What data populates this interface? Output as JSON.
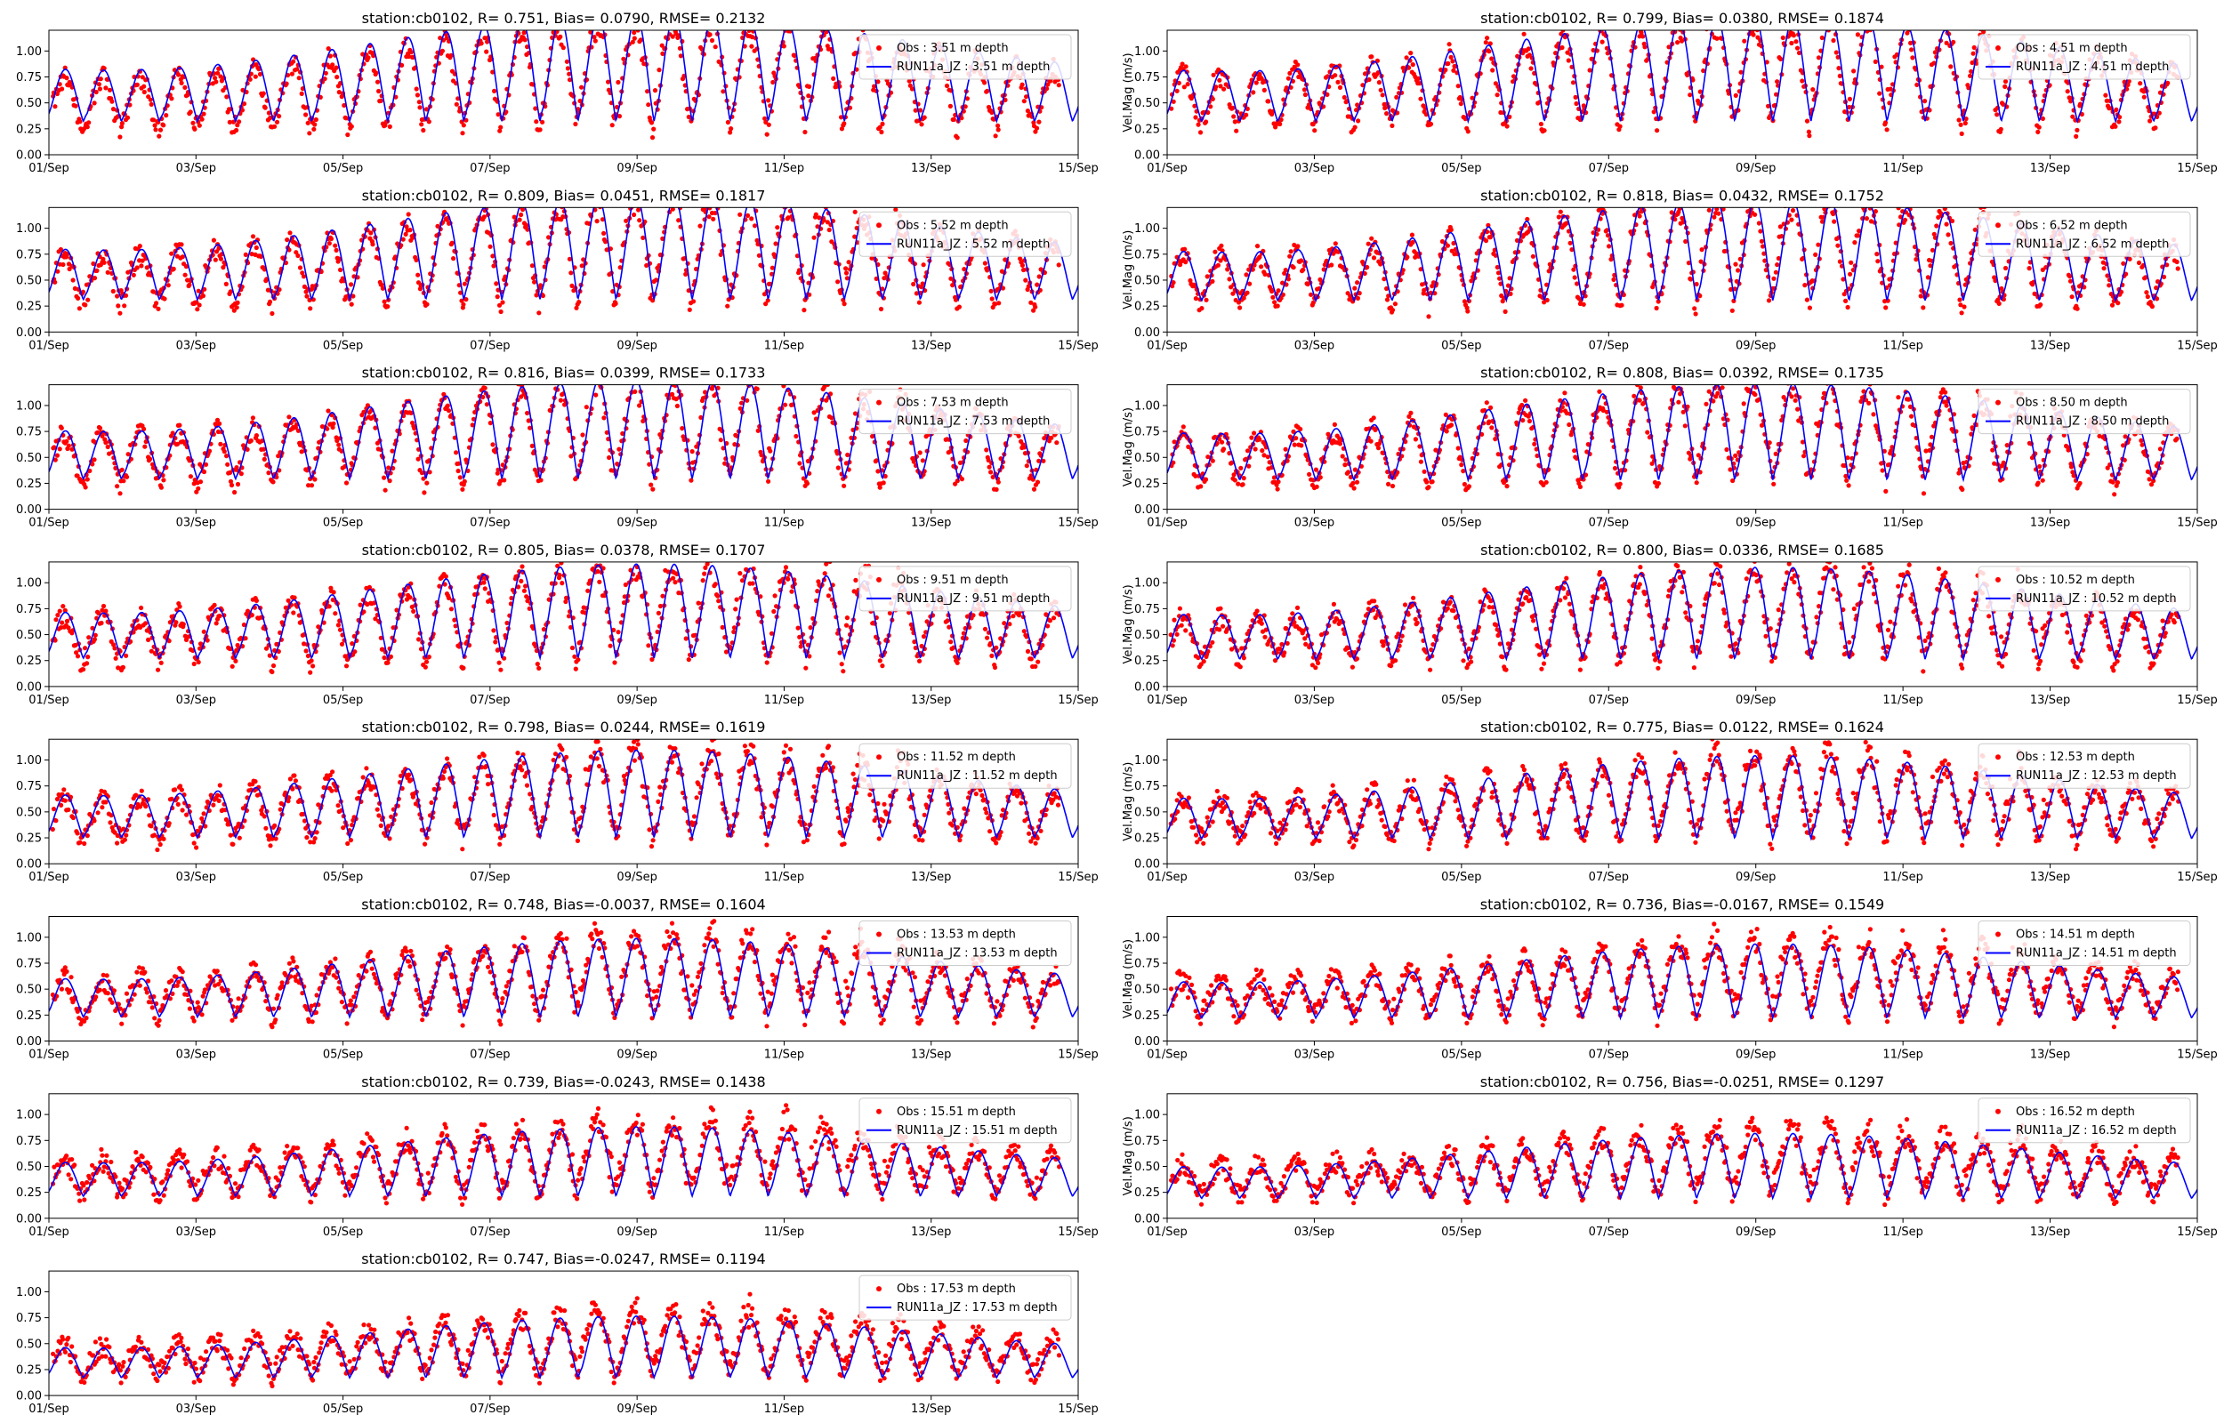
{
  "figure": {
    "colors": {
      "obs": "#ff0000",
      "model": "#0000ff",
      "axes": "#000000",
      "background": "#ffffff"
    }
  },
  "chart_data": [
    {
      "type": "line",
      "title": "station:cb0102, R= 0.751, Bias= 0.0790, RMSE= 0.2132",
      "ylabel": "",
      "xlim": [
        "01/Sep",
        "15/Sep"
      ],
      "ylim": [
        0,
        1.2
      ],
      "x_ticks": [
        "01/Sep",
        "03/Sep",
        "05/Sep",
        "07/Sep",
        "09/Sep",
        "11/Sep",
        "13/Sep",
        "15/Sep"
      ],
      "y_ticks": [
        "0.00",
        "0.25",
        "0.50",
        "0.75",
        "1.00"
      ],
      "legend_position": "top-right",
      "series": [
        {
          "name": "Obs : 3.51 m depth",
          "kind": "scatter"
        },
        {
          "name": "RUN11a_JZ : 3.51 m depth",
          "kind": "line"
        }
      ],
      "stats": {
        "R": 0.751,
        "Bias": 0.079,
        "RMSE": 0.2132
      },
      "depth_m": 3.51,
      "model_mean": 0.5,
      "amp_peak": 0.95
    },
    {
      "type": "line",
      "title": "station:cb0102, R= 0.799, Bias= 0.0380, RMSE= 0.1874",
      "ylabel": "Vel.Mag (m/s)",
      "xlim": [
        "01/Sep",
        "15/Sep"
      ],
      "ylim": [
        0,
        1.2
      ],
      "x_ticks": [
        "01/Sep",
        "03/Sep",
        "05/Sep",
        "07/Sep",
        "09/Sep",
        "11/Sep",
        "13/Sep",
        "15/Sep"
      ],
      "y_ticks": [
        "0.00",
        "0.25",
        "0.50",
        "0.75",
        "1.00"
      ],
      "legend_position": "top-right",
      "series": [
        {
          "name": "Obs : 4.51 m depth",
          "kind": "scatter"
        },
        {
          "name": "RUN11a_JZ : 4.51 m depth",
          "kind": "line"
        }
      ],
      "stats": {
        "R": 0.799,
        "Bias": 0.038,
        "RMSE": 0.1874
      },
      "depth_m": 4.51,
      "model_mean": 0.5,
      "amp_peak": 0.93
    },
    {
      "type": "line",
      "title": "station:cb0102, R= 0.809, Bias= 0.0451, RMSE= 0.1817",
      "ylabel": "",
      "xlim": [
        "01/Sep",
        "15/Sep"
      ],
      "ylim": [
        0,
        1.2
      ],
      "x_ticks": [
        "01/Sep",
        "03/Sep",
        "05/Sep",
        "07/Sep",
        "09/Sep",
        "11/Sep",
        "13/Sep",
        "15/Sep"
      ],
      "y_ticks": [
        "0.00",
        "0.25",
        "0.50",
        "0.75",
        "1.00"
      ],
      "legend_position": "top-right",
      "series": [
        {
          "name": "Obs : 5.52 m depth",
          "kind": "scatter"
        },
        {
          "name": "RUN11a_JZ : 5.52 m depth",
          "kind": "line"
        }
      ],
      "stats": {
        "R": 0.809,
        "Bias": 0.0451,
        "RMSE": 0.1817
      },
      "depth_m": 5.52,
      "model_mean": 0.49,
      "amp_peak": 0.92
    },
    {
      "type": "line",
      "title": "station:cb0102, R= 0.818, Bias= 0.0432, RMSE= 0.1752",
      "ylabel": "Vel.Mag (m/s)",
      "xlim": [
        "01/Sep",
        "15/Sep"
      ],
      "ylim": [
        0,
        1.2
      ],
      "x_ticks": [
        "01/Sep",
        "03/Sep",
        "05/Sep",
        "07/Sep",
        "09/Sep",
        "11/Sep",
        "13/Sep",
        "15/Sep"
      ],
      "y_ticks": [
        "0.00",
        "0.25",
        "0.50",
        "0.75",
        "1.00"
      ],
      "legend_position": "top-right",
      "series": [
        {
          "name": "Obs : 6.52 m depth",
          "kind": "scatter"
        },
        {
          "name": "RUN11a_JZ : 6.52 m depth",
          "kind": "line"
        }
      ],
      "stats": {
        "R": 0.818,
        "Bias": 0.0432,
        "RMSE": 0.1752
      },
      "depth_m": 6.52,
      "model_mean": 0.48,
      "amp_peak": 0.9
    },
    {
      "type": "line",
      "title": "station:cb0102, R= 0.816, Bias= 0.0399, RMSE= 0.1733",
      "ylabel": "",
      "xlim": [
        "01/Sep",
        "15/Sep"
      ],
      "ylim": [
        0,
        1.2
      ],
      "x_ticks": [
        "01/Sep",
        "03/Sep",
        "05/Sep",
        "07/Sep",
        "09/Sep",
        "11/Sep",
        "13/Sep",
        "15/Sep"
      ],
      "y_ticks": [
        "0.00",
        "0.25",
        "0.50",
        "0.75",
        "1.00"
      ],
      "legend_position": "top-right",
      "series": [
        {
          "name": "Obs : 7.53 m depth",
          "kind": "scatter"
        },
        {
          "name": "RUN11a_JZ : 7.53 m depth",
          "kind": "line"
        }
      ],
      "stats": {
        "R": 0.816,
        "Bias": 0.0399,
        "RMSE": 0.1733
      },
      "depth_m": 7.53,
      "model_mean": 0.47,
      "amp_peak": 0.88
    },
    {
      "type": "line",
      "title": "station:cb0102, R= 0.808, Bias= 0.0392, RMSE= 0.1735",
      "ylabel": "Vel.Mag (m/s)",
      "xlim": [
        "01/Sep",
        "15/Sep"
      ],
      "ylim": [
        0,
        1.2
      ],
      "x_ticks": [
        "01/Sep",
        "03/Sep",
        "05/Sep",
        "07/Sep",
        "09/Sep",
        "11/Sep",
        "13/Sep",
        "15/Sep"
      ],
      "y_ticks": [
        "0.00",
        "0.25",
        "0.50",
        "0.75",
        "1.00"
      ],
      "legend_position": "top-right",
      "series": [
        {
          "name": "Obs : 8.50 m depth",
          "kind": "scatter"
        },
        {
          "name": "RUN11a_JZ : 8.50 m depth",
          "kind": "line"
        }
      ],
      "stats": {
        "R": 0.808,
        "Bias": 0.0392,
        "RMSE": 0.1735
      },
      "depth_m": 8.5,
      "model_mean": 0.46,
      "amp_peak": 0.86
    },
    {
      "type": "line",
      "title": "station:cb0102, R= 0.805, Bias= 0.0378, RMSE= 0.1707",
      "ylabel": "",
      "xlim": [
        "01/Sep",
        "15/Sep"
      ],
      "ylim": [
        0,
        1.2
      ],
      "x_ticks": [
        "01/Sep",
        "03/Sep",
        "05/Sep",
        "07/Sep",
        "09/Sep",
        "11/Sep",
        "13/Sep",
        "15/Sep"
      ],
      "y_ticks": [
        "0.00",
        "0.25",
        "0.50",
        "0.75",
        "1.00"
      ],
      "legend_position": "top-right",
      "series": [
        {
          "name": "Obs : 9.51 m depth",
          "kind": "scatter"
        },
        {
          "name": "RUN11a_JZ : 9.51 m depth",
          "kind": "line"
        }
      ],
      "stats": {
        "R": 0.805,
        "Bias": 0.0378,
        "RMSE": 0.1707
      },
      "depth_m": 9.51,
      "model_mean": 0.45,
      "amp_peak": 0.84
    },
    {
      "type": "line",
      "title": "station:cb0102, R= 0.800, Bias= 0.0336, RMSE= 0.1685",
      "ylabel": "Vel.Mag (m/s)",
      "xlim": [
        "01/Sep",
        "15/Sep"
      ],
      "ylim": [
        0,
        1.2
      ],
      "x_ticks": [
        "01/Sep",
        "03/Sep",
        "05/Sep",
        "07/Sep",
        "09/Sep",
        "11/Sep",
        "13/Sep",
        "15/Sep"
      ],
      "y_ticks": [
        "0.00",
        "0.25",
        "0.50",
        "0.75",
        "1.00"
      ],
      "legend_position": "top-right",
      "series": [
        {
          "name": "Obs : 10.52 m depth",
          "kind": "scatter"
        },
        {
          "name": "RUN11a_JZ : 10.52 m depth",
          "kind": "line"
        }
      ],
      "stats": {
        "R": 0.8,
        "Bias": 0.0336,
        "RMSE": 0.1685
      },
      "depth_m": 10.52,
      "model_mean": 0.44,
      "amp_peak": 0.82
    },
    {
      "type": "line",
      "title": "station:cb0102, R= 0.798, Bias= 0.0244, RMSE= 0.1619",
      "ylabel": "",
      "xlim": [
        "01/Sep",
        "15/Sep"
      ],
      "ylim": [
        0,
        1.2
      ],
      "x_ticks": [
        "01/Sep",
        "03/Sep",
        "05/Sep",
        "07/Sep",
        "09/Sep",
        "11/Sep",
        "13/Sep",
        "15/Sep"
      ],
      "y_ticks": [
        "0.00",
        "0.25",
        "0.50",
        "0.75",
        "1.00"
      ],
      "legend_position": "top-right",
      "series": [
        {
          "name": "Obs : 11.52 m depth",
          "kind": "scatter"
        },
        {
          "name": "RUN11a_JZ : 11.52 m depth",
          "kind": "line"
        }
      ],
      "stats": {
        "R": 0.798,
        "Bias": 0.0244,
        "RMSE": 0.1619
      },
      "depth_m": 11.52,
      "model_mean": 0.43,
      "amp_peak": 0.78
    },
    {
      "type": "line",
      "title": "station:cb0102, R= 0.775, Bias= 0.0122, RMSE= 0.1624",
      "ylabel": "Vel.Mag (m/s)",
      "xlim": [
        "01/Sep",
        "15/Sep"
      ],
      "ylim": [
        0,
        1.2
      ],
      "x_ticks": [
        "01/Sep",
        "03/Sep",
        "05/Sep",
        "07/Sep",
        "09/Sep",
        "11/Sep",
        "13/Sep",
        "15/Sep"
      ],
      "y_ticks": [
        "0.00",
        "0.25",
        "0.50",
        "0.75",
        "1.00"
      ],
      "legend_position": "top-right",
      "series": [
        {
          "name": "Obs : 12.53 m depth",
          "kind": "scatter"
        },
        {
          "name": "RUN11a_JZ : 12.53 m depth",
          "kind": "line"
        }
      ],
      "stats": {
        "R": 0.775,
        "Bias": 0.0122,
        "RMSE": 0.1624
      },
      "depth_m": 12.53,
      "model_mean": 0.42,
      "amp_peak": 0.74
    },
    {
      "type": "line",
      "title": "station:cb0102, R= 0.748, Bias=-0.0037, RMSE= 0.1604",
      "ylabel": "",
      "xlim": [
        "01/Sep",
        "15/Sep"
      ],
      "ylim": [
        0,
        1.2
      ],
      "x_ticks": [
        "01/Sep",
        "03/Sep",
        "05/Sep",
        "07/Sep",
        "09/Sep",
        "11/Sep",
        "13/Sep",
        "15/Sep"
      ],
      "y_ticks": [
        "0.00",
        "0.25",
        "0.50",
        "0.75",
        "1.00"
      ],
      "legend_position": "top-right",
      "series": [
        {
          "name": "Obs : 13.53 m depth",
          "kind": "scatter"
        },
        {
          "name": "RUN11a_JZ : 13.53 m depth",
          "kind": "line"
        }
      ],
      "stats": {
        "R": 0.748,
        "Bias": -0.0037,
        "RMSE": 0.1604
      },
      "depth_m": 13.53,
      "model_mean": 0.41,
      "amp_peak": 0.7
    },
    {
      "type": "line",
      "title": "station:cb0102, R= 0.736, Bias=-0.0167, RMSE= 0.1549",
      "ylabel": "Vel.Mag (m/s)",
      "xlim": [
        "01/Sep",
        "15/Sep"
      ],
      "ylim": [
        0,
        1.2
      ],
      "x_ticks": [
        "01/Sep",
        "03/Sep",
        "05/Sep",
        "07/Sep",
        "09/Sep",
        "11/Sep",
        "13/Sep",
        "15/Sep"
      ],
      "y_ticks": [
        "0.00",
        "0.25",
        "0.50",
        "0.75",
        "1.00"
      ],
      "legend_position": "top-right",
      "series": [
        {
          "name": "Obs : 14.51 m depth",
          "kind": "scatter"
        },
        {
          "name": "RUN11a_JZ : 14.51 m depth",
          "kind": "line"
        }
      ],
      "stats": {
        "R": 0.736,
        "Bias": -0.0167,
        "RMSE": 0.1549
      },
      "depth_m": 14.51,
      "model_mean": 0.4,
      "amp_peak": 0.66
    },
    {
      "type": "line",
      "title": "station:cb0102, R= 0.739, Bias=-0.0243, RMSE= 0.1438",
      "ylabel": "",
      "xlim": [
        "01/Sep",
        "15/Sep"
      ],
      "ylim": [
        0,
        1.2
      ],
      "x_ticks": [
        "01/Sep",
        "03/Sep",
        "05/Sep",
        "07/Sep",
        "09/Sep",
        "11/Sep",
        "13/Sep",
        "15/Sep"
      ],
      "y_ticks": [
        "0.00",
        "0.25",
        "0.50",
        "0.75",
        "1.00"
      ],
      "legend_position": "top-right",
      "series": [
        {
          "name": "Obs : 15.51 m depth",
          "kind": "scatter"
        },
        {
          "name": "RUN11a_JZ : 15.51 m depth",
          "kind": "line"
        }
      ],
      "stats": {
        "R": 0.739,
        "Bias": -0.0243,
        "RMSE": 0.1438
      },
      "depth_m": 15.51,
      "model_mean": 0.39,
      "amp_peak": 0.62
    },
    {
      "type": "line",
      "title": "station:cb0102, R= 0.756, Bias=-0.0251, RMSE= 0.1297",
      "ylabel": "Vel.Mag (m/s)",
      "xlim": [
        "01/Sep",
        "15/Sep"
      ],
      "ylim": [
        0,
        1.2
      ],
      "x_ticks": [
        "01/Sep",
        "03/Sep",
        "05/Sep",
        "07/Sep",
        "09/Sep",
        "11/Sep",
        "13/Sep",
        "15/Sep"
      ],
      "y_ticks": [
        "0.00",
        "0.25",
        "0.50",
        "0.75",
        "1.00"
      ],
      "legend_position": "top-right",
      "series": [
        {
          "name": "Obs : 16.52 m depth",
          "kind": "scatter"
        },
        {
          "name": "RUN11a_JZ : 16.52 m depth",
          "kind": "line"
        }
      ],
      "stats": {
        "R": 0.756,
        "Bias": -0.0251,
        "RMSE": 0.1297
      },
      "depth_m": 16.52,
      "model_mean": 0.37,
      "amp_peak": 0.58
    },
    {
      "type": "line",
      "title": "station:cb0102, R= 0.747, Bias=-0.0247, RMSE= 0.1194",
      "ylabel": "",
      "xlim": [
        "01/Sep",
        "15/Sep"
      ],
      "ylim": [
        0,
        1.2
      ],
      "x_ticks": [
        "01/Sep",
        "03/Sep",
        "05/Sep",
        "07/Sep",
        "09/Sep",
        "11/Sep",
        "13/Sep",
        "15/Sep"
      ],
      "y_ticks": [
        "0.00",
        "0.25",
        "0.50",
        "0.75",
        "1.00"
      ],
      "legend_position": "top-right",
      "series": [
        {
          "name": "Obs : 17.53 m depth",
          "kind": "scatter"
        },
        {
          "name": "RUN11a_JZ : 17.53 m depth",
          "kind": "line"
        }
      ],
      "stats": {
        "R": 0.747,
        "Bias": -0.0247,
        "RMSE": 0.1194
      },
      "depth_m": 17.53,
      "model_mean": 0.35,
      "amp_peak": 0.55
    }
  ]
}
